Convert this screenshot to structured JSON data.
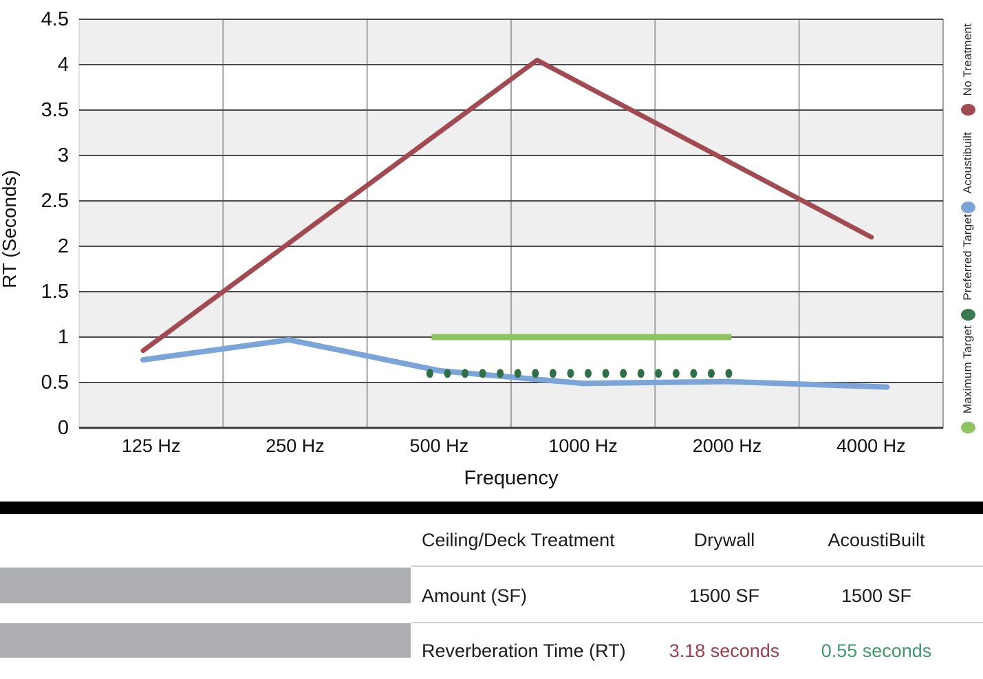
{
  "chart": {
    "y_axis_title": "RT (Seconds)",
    "x_axis_title": "Frequency",
    "y_ticks": [
      "4.5",
      "4",
      "3.5",
      "3",
      "2.5",
      "2",
      "1.5",
      "1",
      "0.5",
      "0"
    ],
    "x_categories": [
      "125 Hz",
      "250 Hz",
      "500 Hz",
      "1000 Hz",
      "2000 Hz",
      "4000 Hz"
    ]
  },
  "chart_data": {
    "type": "line",
    "title": "",
    "xlabel": "Frequency",
    "ylabel": "RT (Seconds)",
    "ylim": [
      0,
      4.5
    ],
    "ytick_step": 0.5,
    "grid": "horizontal dark gridlines, light vertical gridlines, alternating gray/white row bands",
    "legend_position": "right column, labels rotated 90 degrees",
    "categories": [
      "125 Hz",
      "250 Hz",
      "500 Hz",
      "1000 Hz",
      "2000 Hz",
      "4000 Hz"
    ],
    "series": [
      {
        "name": "No Treatment",
        "color": "#A24A52",
        "line_style": "solid",
        "stroke_width": 7,
        "values_at_categories": [
          0.85,
          2.0,
          3.18,
          4.05,
          2.9,
          2.1
        ],
        "shape_note": "two straight segments rising from 0.85 at 125 Hz to a ~4.05 peak just before 1000 Hz, then falling to 2.1 at 4000 Hz",
        "draw_points": [
          [
            0.074,
            0.85
          ],
          [
            0.53,
            4.05
          ],
          [
            0.917,
            2.1
          ]
        ]
      },
      {
        "name": "Acoustibuilt",
        "color": "#7BA4D8",
        "line_style": "solid",
        "stroke_width": 8,
        "values_at_categories": [
          0.75,
          0.97,
          0.63,
          0.49,
          0.51,
          0.45
        ],
        "draw_points": [
          [
            0.074,
            0.75
          ],
          [
            0.243,
            0.97
          ],
          [
            0.4167,
            0.63
          ],
          [
            0.5833,
            0.49
          ],
          [
            0.75,
            0.51
          ],
          [
            0.935,
            0.45
          ]
        ]
      },
      {
        "name": "Preferred Target",
        "color": "#2F6F48",
        "line_style": "dotted",
        "stroke_width": 11,
        "values_at_categories": [
          null,
          null,
          0.6,
          0.6,
          0.6,
          null
        ],
        "span": "flat dotted line at 0.6 s from 500 Hz to 2000 Hz",
        "dot_count": 18,
        "draw_points": [
          [
            0.406,
            0.6
          ],
          [
            0.752,
            0.6
          ]
        ]
      },
      {
        "name": "Maximum Target",
        "color": "#8EC45F",
        "line_style": "solid",
        "stroke_width": 9,
        "values_at_categories": [
          null,
          null,
          1.0,
          1.0,
          1.0,
          null
        ],
        "span": "flat solid line at 1.0 s from 500 Hz to 2000 Hz",
        "draw_points": [
          [
            0.408,
            1.0
          ],
          [
            0.755,
            1.0
          ]
        ]
      }
    ]
  },
  "legend": {
    "items": [
      {
        "label": "No Treatment",
        "color": "#A24A52"
      },
      {
        "label": "Acoustibuilt",
        "color": "#7BA4D8"
      },
      {
        "label": "Preferred Target",
        "color": "#3A7A50"
      },
      {
        "label": "Maximum Target",
        "color": "#8EC45F"
      }
    ]
  },
  "table": {
    "header": {
      "col1": "Ceiling/Deck Treatment",
      "col2": "Drywall",
      "col3": "AcoustiBuilt"
    },
    "rows": [
      {
        "label": "Amount (SF)",
        "drywall": "1500 SF",
        "acoustibuilt": "1500 SF",
        "drywall_color": "#1c1c1c",
        "acoustibuilt_color": "#1c1c1c"
      },
      {
        "label": "Reverberation Time (RT)",
        "drywall": "3.18 seconds",
        "acoustibuilt": "0.55 seconds",
        "drywall_color": "#9B4051",
        "acoustibuilt_color": "#41996D"
      }
    ]
  },
  "colors": {
    "band_gray": "#EFEFEF",
    "h_gridline": "#4A4A4A",
    "v_gridline": "#A3A3A3",
    "axis_bottom": "#3A3A3A",
    "plot_border": "#C8C8C8",
    "black_bar": "#000000",
    "row_divider": "#D0D0D0",
    "gray_bar": "#ACAEB1"
  }
}
